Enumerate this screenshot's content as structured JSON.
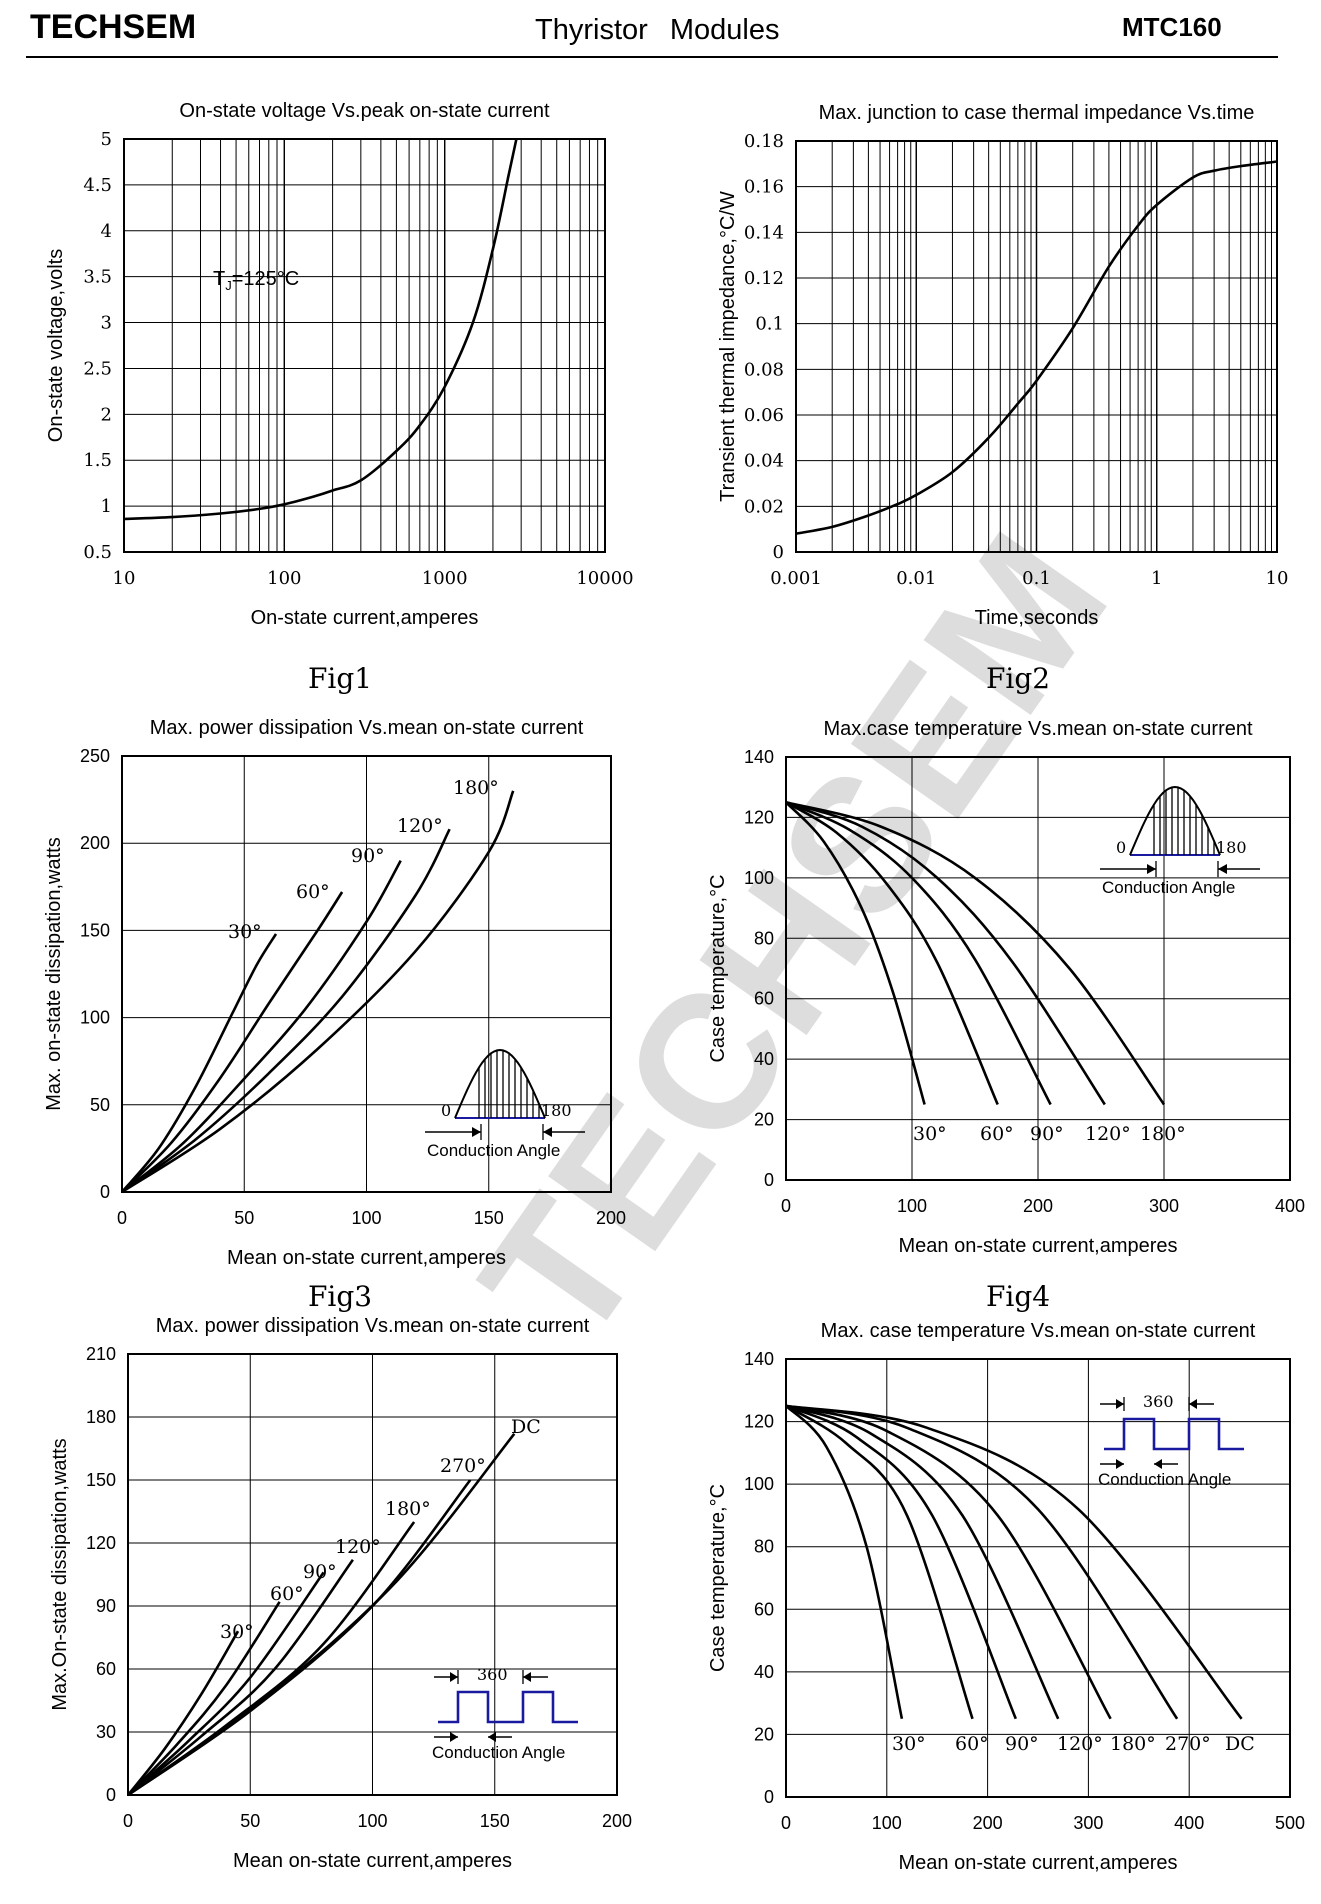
{
  "header": {
    "brand": "TECHSEM",
    "title": "Thyristor Modules",
    "model": "MTC160"
  },
  "watermark": "TECHSEM",
  "colors": {
    "line": "#000000",
    "grid": "#000000",
    "waveform_blue": "#1a1aa0"
  },
  "chart_data": [
    {
      "id": "fig1",
      "caption": "Fig1",
      "type": "line",
      "title": "On-state voltage Vs.peak on-state current",
      "xlabel": "On-state current,amperes",
      "ylabel": "On-state voltage,volts",
      "xscale": "log",
      "xlim": [
        10,
        10000
      ],
      "ylim": [
        0.5,
        5
      ],
      "x_ticks": [
        10,
        100,
        1000,
        10000
      ],
      "x_tick_labels": [
        "10",
        "100",
        "1000",
        "10000"
      ],
      "y_ticks": [
        0.5,
        1,
        1.5,
        2,
        2.5,
        3,
        3.5,
        4,
        4.5,
        5
      ],
      "y_tick_labels": [
        "0.5",
        "1",
        "1.5",
        "2",
        "2.5",
        "3",
        "3.5",
        "4",
        "4.5",
        "5"
      ],
      "annotation": {
        "prefix": "T",
        "sub": "J",
        "suffix": "=125°C"
      },
      "series": [
        {
          "x": [
            10,
            20,
            40,
            70,
            100,
            150,
            200,
            300,
            500,
            700,
            1000,
            1500,
            2000,
            2500,
            2800
          ],
          "y": [
            0.86,
            0.88,
            0.92,
            0.97,
            1.02,
            1.1,
            1.17,
            1.28,
            1.6,
            1.88,
            2.3,
            3.0,
            3.8,
            4.6,
            5.0
          ]
        }
      ]
    },
    {
      "id": "fig2",
      "caption": "Fig2",
      "type": "line",
      "title": "Max. junction to case thermal impedance Vs.time",
      "xlabel": "Time,seconds",
      "ylabel": "Transient thermal impedance,°C/W",
      "xscale": "log",
      "xlim": [
        0.001,
        10
      ],
      "ylim": [
        0,
        0.18
      ],
      "x_ticks": [
        0.001,
        0.01,
        0.1,
        1,
        10
      ],
      "x_tick_labels": [
        "0.001",
        "0.01",
        "0.1",
        "1",
        "10"
      ],
      "y_ticks": [
        0,
        0.02,
        0.04,
        0.06,
        0.08,
        0.1,
        0.12,
        0.14,
        0.16,
        0.18
      ],
      "y_tick_labels": [
        "0",
        "0.02",
        "0.04",
        "0.06",
        "0.08",
        "0.1",
        "0.12",
        "0.14",
        "0.16",
        "0.18"
      ],
      "series": [
        {
          "x": [
            0.001,
            0.002,
            0.004,
            0.007,
            0.01,
            0.02,
            0.04,
            0.07,
            0.1,
            0.2,
            0.4,
            0.7,
            1,
            2,
            3,
            5,
            10
          ],
          "y": [
            0.008,
            0.011,
            0.016,
            0.021,
            0.025,
            0.035,
            0.05,
            0.065,
            0.075,
            0.098,
            0.125,
            0.143,
            0.152,
            0.164,
            0.167,
            0.169,
            0.171
          ]
        }
      ]
    },
    {
      "id": "fig3",
      "caption": "Fig3",
      "type": "line",
      "title": "Max. power dissipation Vs.mean on-state current",
      "xlabel": "Mean on-state current,amperes",
      "ylabel": "Max. on-state dissipation,watts",
      "xlim": [
        0,
        200
      ],
      "ylim": [
        0,
        250
      ],
      "x_ticks": [
        0,
        50,
        100,
        150,
        200
      ],
      "x_tick_labels": [
        "0",
        "50",
        "100",
        "150",
        "200"
      ],
      "y_ticks": [
        0,
        50,
        100,
        150,
        200,
        250
      ],
      "y_tick_labels": [
        "0",
        "50",
        "100",
        "150",
        "200",
        "250"
      ],
      "inset": {
        "left": "0",
        "right": "180",
        "caption": "Conduction Angle",
        "waveform": "half-sine"
      },
      "series": [
        {
          "name": "30°",
          "x": [
            0,
            15,
            30,
            45,
            55,
            63
          ],
          "y": [
            0,
            25,
            60,
            102,
            130,
            148
          ]
        },
        {
          "name": "60°",
          "x": [
            0,
            20,
            40,
            60,
            80,
            90
          ],
          "y": [
            0,
            28,
            65,
            108,
            150,
            172
          ]
        },
        {
          "name": "90°",
          "x": [
            0,
            25,
            50,
            75,
            100,
            114
          ],
          "y": [
            0,
            28,
            65,
            105,
            155,
            190
          ]
        },
        {
          "name": "120°",
          "x": [
            0,
            30,
            60,
            90,
            120,
            134
          ],
          "y": [
            0,
            30,
            68,
            112,
            170,
            208
          ]
        },
        {
          "name": "180°",
          "x": [
            0,
            40,
            80,
            120,
            150,
            160
          ],
          "y": [
            0,
            36,
            82,
            138,
            195,
            230
          ]
        }
      ]
    },
    {
      "id": "fig4",
      "caption": "Fig4",
      "type": "line",
      "title": "Max.case temperature Vs.mean on-state current",
      "xlabel": "Mean on-state current,amperes",
      "ylabel": "Case temperature,°C",
      "xlim": [
        0,
        400
      ],
      "ylim": [
        0,
        140
      ],
      "x_ticks": [
        0,
        100,
        200,
        300,
        400
      ],
      "x_tick_labels": [
        "0",
        "100",
        "200",
        "300",
        "400"
      ],
      "y_ticks": [
        0,
        20,
        40,
        60,
        80,
        100,
        120,
        140
      ],
      "y_tick_labels": [
        "0",
        "20",
        "40",
        "60",
        "80",
        "100",
        "120",
        "140"
      ],
      "inset": {
        "left": "0",
        "right": "180",
        "caption": "Conduction Angle",
        "waveform": "half-sine"
      },
      "series": [
        {
          "name": "30°",
          "x": [
            0,
            30,
            60,
            85,
            110
          ],
          "y": [
            125,
            112,
            90,
            62,
            25
          ]
        },
        {
          "name": "60°",
          "x": [
            0,
            40,
            80,
            120,
            168
          ],
          "y": [
            125,
            115,
            98,
            72,
            25
          ]
        },
        {
          "name": "90°",
          "x": [
            0,
            50,
            100,
            150,
            210
          ],
          "y": [
            125,
            116,
            100,
            73,
            25
          ]
        },
        {
          "name": "120°",
          "x": [
            0,
            60,
            120,
            180,
            253
          ],
          "y": [
            125,
            117,
            100,
            72,
            25
          ]
        },
        {
          "name": "180°",
          "x": [
            0,
            75,
            150,
            225,
            300
          ],
          "y": [
            125,
            117,
            100,
            70,
            25
          ]
        }
      ]
    },
    {
      "id": "fig5",
      "caption": "",
      "type": "line",
      "title": "Max. power dissipation Vs.mean on-state current",
      "xlabel": "Mean on-state current,amperes",
      "ylabel": "Max.On-state dissipation,watts",
      "xlim": [
        0,
        200
      ],
      "ylim": [
        0,
        210
      ],
      "x_ticks": [
        0,
        50,
        100,
        150,
        200
      ],
      "x_tick_labels": [
        "0",
        "50",
        "100",
        "150",
        "200"
      ],
      "y_ticks": [
        0,
        30,
        60,
        90,
        120,
        150,
        180,
        210
      ],
      "y_tick_labels": [
        "0",
        "30",
        "60",
        "90",
        "120",
        "150",
        "180",
        "210"
      ],
      "inset": {
        "top": "360",
        "caption": "Conduction Angle",
        "waveform": "rectangular"
      },
      "series": [
        {
          "name": "30°",
          "x": [
            0,
            15,
            30,
            45
          ],
          "y": [
            0,
            22,
            48,
            78
          ]
        },
        {
          "name": "60°",
          "x": [
            0,
            20,
            40,
            62
          ],
          "y": [
            0,
            24,
            52,
            92
          ]
        },
        {
          "name": "90°",
          "x": [
            0,
            25,
            50,
            80
          ],
          "y": [
            0,
            26,
            56,
            106
          ]
        },
        {
          "name": "120°",
          "x": [
            0,
            30,
            60,
            92
          ],
          "y": [
            0,
            28,
            60,
            112
          ]
        },
        {
          "name": "180°",
          "x": [
            0,
            40,
            80,
            117
          ],
          "y": [
            0,
            33,
            72,
            130
          ]
        },
        {
          "name": "270°",
          "x": [
            0,
            50,
            100,
            140
          ],
          "y": [
            0,
            40,
            90,
            150
          ]
        },
        {
          "name": "DC",
          "x": [
            0,
            55,
            110,
            158
          ],
          "y": [
            0,
            45,
            102,
            172
          ]
        }
      ]
    },
    {
      "id": "fig6",
      "caption": "",
      "type": "line",
      "title": "Max. case temperature Vs.mean on-state current",
      "xlabel": "Mean on-state current,amperes",
      "ylabel": "Case temperature,°C",
      "xlim": [
        0,
        500
      ],
      "ylim": [
        0,
        140
      ],
      "x_ticks": [
        0,
        100,
        200,
        300,
        400,
        500
      ],
      "x_tick_labels": [
        "0",
        "100",
        "200",
        "300",
        "400",
        "500"
      ],
      "y_ticks": [
        0,
        20,
        40,
        60,
        80,
        100,
        120,
        140
      ],
      "y_tick_labels": [
        "0",
        "20",
        "40",
        "60",
        "80",
        "100",
        "120",
        "140"
      ],
      "inset": {
        "top": "360",
        "caption": "Conduction Angle",
        "waveform": "rectangular"
      },
      "series": [
        {
          "name": "30°",
          "x": [
            0,
            40,
            80,
            115
          ],
          "y": [
            125,
            112,
            80,
            25
          ]
        },
        {
          "name": "60°",
          "x": [
            0,
            60,
            120,
            185
          ],
          "y": [
            125,
            113,
            90,
            25
          ]
        },
        {
          "name": "90°",
          "x": [
            0,
            70,
            145,
            228
          ],
          "y": [
            125,
            115,
            90,
            25
          ]
        },
        {
          "name": "120°",
          "x": [
            0,
            85,
            175,
            270
          ],
          "y": [
            125,
            116,
            90,
            25
          ]
        },
        {
          "name": "180°",
          "x": [
            0,
            100,
            210,
            322
          ],
          "y": [
            125,
            117,
            90,
            25
          ]
        },
        {
          "name": "270°",
          "x": [
            0,
            120,
            250,
            388
          ],
          "y": [
            125,
            118,
            92,
            25
          ]
        },
        {
          "name": "DC",
          "x": [
            0,
            140,
            290,
            452
          ],
          "y": [
            125,
            118,
            92,
            25
          ]
        }
      ]
    }
  ]
}
